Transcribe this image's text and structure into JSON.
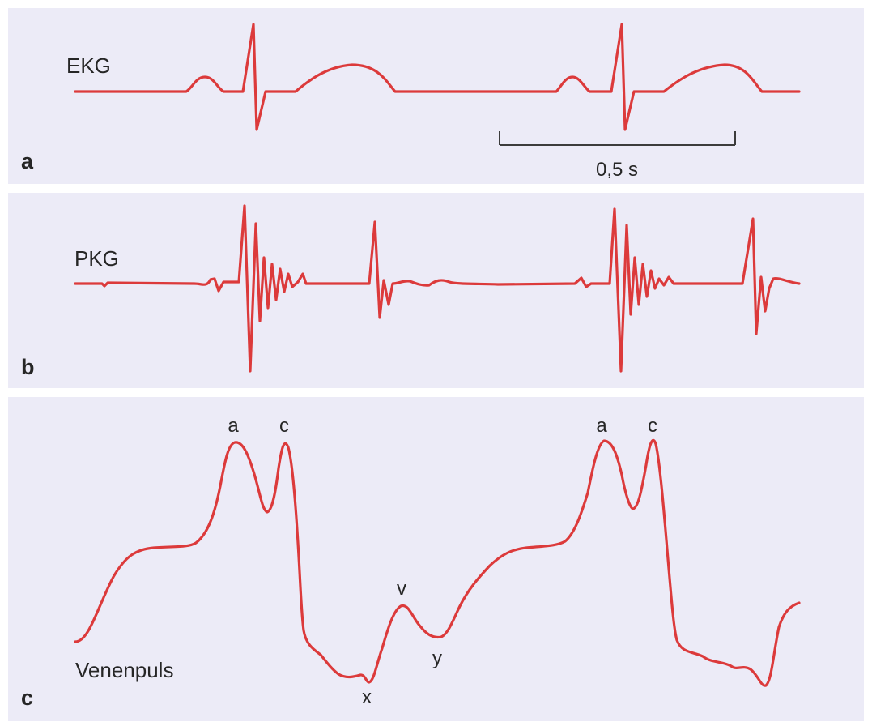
{
  "panels": [
    {
      "letter": "a",
      "trace_name": "EKG",
      "scale_label": "0,5 s",
      "color": "#dc3a3b"
    },
    {
      "letter": "b",
      "trace_name": "PKG",
      "color": "#dc3a3b"
    },
    {
      "letter": "c",
      "trace_name": "Venenpuls",
      "color": "#dc3a3b",
      "wave_labels": {
        "a1": "a",
        "c1": "c",
        "a2": "a",
        "c2": "c",
        "v": "v",
        "x": "x",
        "y": "y"
      }
    }
  ],
  "colors": {
    "background": "#ecebf7",
    "trace": "#dc3a3b",
    "text": "#262626"
  }
}
